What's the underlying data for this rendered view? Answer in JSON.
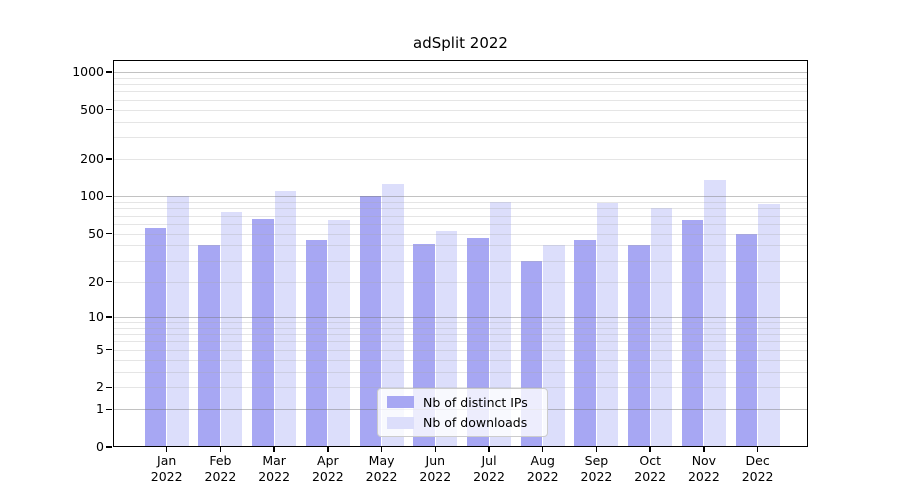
{
  "title": "adSplit 2022",
  "chart_data": {
    "type": "bar",
    "title": "adSplit 2022",
    "categories": [
      "Jan",
      "Feb",
      "Mar",
      "Apr",
      "May",
      "Jun",
      "Jul",
      "Aug",
      "Sep",
      "Oct",
      "Nov",
      "Dec"
    ],
    "category_year": "2022",
    "series": [
      {
        "name": "Nb of distinct IPs",
        "color": "#a7a7f3",
        "values": [
          55,
          40,
          66,
          44,
          100,
          41,
          46,
          30,
          44,
          40,
          64,
          50
        ]
      },
      {
        "name": "Nb of downloads",
        "color": "#dcdefb",
        "values": [
          100,
          75,
          110,
          65,
          125,
          52,
          90,
          40,
          88,
          80,
          135,
          87
        ]
      }
    ],
    "yscale": "log1p",
    "yticks": [
      "0",
      "1",
      "2",
      "5",
      "10",
      "20",
      "50",
      "100",
      "200",
      "500",
      "1000"
    ],
    "ylim": [
      0,
      1250
    ],
    "grid": true,
    "legend_position": "lower center",
    "style": {
      "grid_major_color": "rgba(120,120,120,0.45)",
      "grid_minor_color": "rgba(170,170,170,0.30)",
      "axis_color": "#000000",
      "legend_border_color": "#cccccc",
      "legend_background": "rgba(255,255,255,0.8)"
    }
  }
}
